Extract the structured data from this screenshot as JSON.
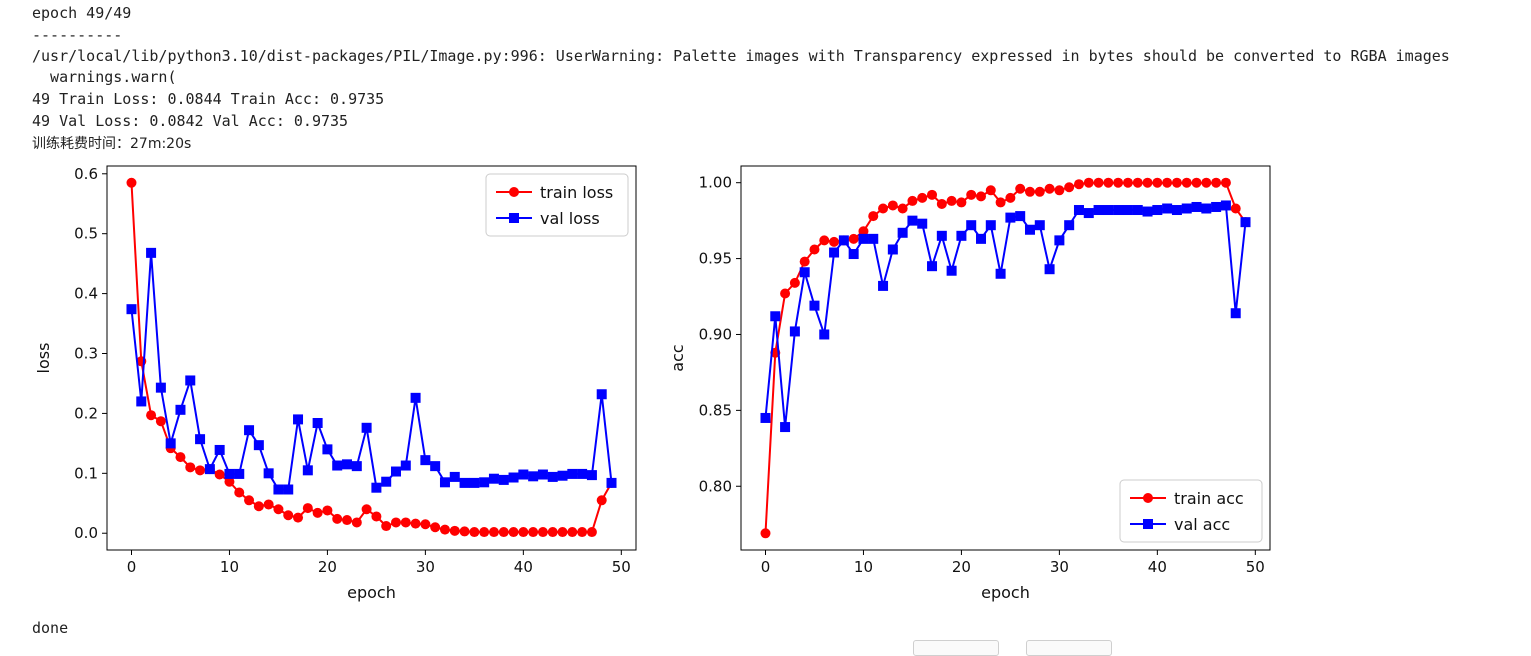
{
  "output": {
    "line1": "epoch 49/49",
    "line2": "----------",
    "line3": "/usr/local/lib/python3.10/dist-packages/PIL/Image.py:996: UserWarning: Palette images with Transparency expressed in bytes should be converted to RGBA images",
    "line4": "  warnings.warn(",
    "line5": "49 Train Loss: 0.0844 Train Acc: 0.9735",
    "line6": "49 Val Loss: 0.0842 Val Acc: 0.9735",
    "line7": "训练耗费时间：27m:20s",
    "done": "done"
  },
  "colors": {
    "train": "#ff0000",
    "val": "#0000ff"
  },
  "chart_data": [
    {
      "type": "line",
      "xlabel": "epoch",
      "ylabel": "loss",
      "xlim": [
        -2.5,
        51.5
      ],
      "ylim": [
        -0.028,
        0.613
      ],
      "xticks": [
        0,
        10,
        20,
        30,
        40,
        50
      ],
      "yticks": [
        0.0,
        0.1,
        0.2,
        0.3,
        0.4,
        0.5,
        0.6
      ],
      "ytick_labels": [
        "0.0",
        "0.1",
        "0.2",
        "0.3",
        "0.4",
        "0.5",
        "0.6"
      ],
      "legend_position": "upper-right",
      "x": [
        0,
        1,
        2,
        3,
        4,
        5,
        6,
        7,
        8,
        9,
        10,
        11,
        12,
        13,
        14,
        15,
        16,
        17,
        18,
        19,
        20,
        21,
        22,
        23,
        24,
        25,
        26,
        27,
        28,
        29,
        30,
        31,
        32,
        33,
        34,
        35,
        36,
        37,
        38,
        39,
        40,
        41,
        42,
        43,
        44,
        45,
        46,
        47,
        48,
        49
      ],
      "series": [
        {
          "name": "train loss",
          "marker": "circle",
          "color": "#ff0000",
          "values": [
            0.585,
            0.287,
            0.197,
            0.187,
            0.142,
            0.127,
            0.11,
            0.105,
            0.107,
            0.098,
            0.086,
            0.068,
            0.055,
            0.045,
            0.048,
            0.04,
            0.03,
            0.026,
            0.042,
            0.034,
            0.038,
            0.024,
            0.022,
            0.018,
            0.04,
            0.028,
            0.012,
            0.018,
            0.018,
            0.016,
            0.015,
            0.01,
            0.006,
            0.004,
            0.003,
            0.002,
            0.002,
            0.002,
            0.002,
            0.002,
            0.002,
            0.002,
            0.002,
            0.002,
            0.002,
            0.002,
            0.002,
            0.002,
            0.055,
            0.084
          ]
        },
        {
          "name": "val loss",
          "marker": "square",
          "color": "#0000ff",
          "values": [
            0.374,
            0.22,
            0.468,
            0.243,
            0.15,
            0.206,
            0.255,
            0.157,
            0.107,
            0.139,
            0.099,
            0.099,
            0.172,
            0.147,
            0.1,
            0.073,
            0.073,
            0.19,
            0.105,
            0.184,
            0.14,
            0.113,
            0.115,
            0.112,
            0.176,
            0.076,
            0.086,
            0.103,
            0.113,
            0.226,
            0.122,
            0.112,
            0.085,
            0.094,
            0.084,
            0.084,
            0.085,
            0.091,
            0.089,
            0.093,
            0.098,
            0.095,
            0.098,
            0.094,
            0.096,
            0.099,
            0.099,
            0.097,
            0.232,
            0.084
          ]
        }
      ]
    },
    {
      "type": "line",
      "xlabel": "epoch",
      "ylabel": "acc",
      "xlim": [
        -2.5,
        51.5
      ],
      "ylim": [
        0.758,
        1.011
      ],
      "xticks": [
        0,
        10,
        20,
        30,
        40,
        50
      ],
      "yticks": [
        0.8,
        0.85,
        0.9,
        0.95,
        1.0
      ],
      "ytick_labels": [
        "0.80",
        "0.85",
        "0.90",
        "0.95",
        "1.00"
      ],
      "legend_position": "lower-right",
      "x": [
        0,
        1,
        2,
        3,
        4,
        5,
        6,
        7,
        8,
        9,
        10,
        11,
        12,
        13,
        14,
        15,
        16,
        17,
        18,
        19,
        20,
        21,
        22,
        23,
        24,
        25,
        26,
        27,
        28,
        29,
        30,
        31,
        32,
        33,
        34,
        35,
        36,
        37,
        38,
        39,
        40,
        41,
        42,
        43,
        44,
        45,
        46,
        47,
        48,
        49
      ],
      "series": [
        {
          "name": "train acc",
          "marker": "circle",
          "color": "#ff0000",
          "values": [
            0.769,
            0.888,
            0.927,
            0.934,
            0.948,
            0.956,
            0.962,
            0.961,
            0.962,
            0.963,
            0.968,
            0.978,
            0.983,
            0.985,
            0.983,
            0.988,
            0.99,
            0.992,
            0.986,
            0.988,
            0.987,
            0.992,
            0.991,
            0.995,
            0.987,
            0.99,
            0.996,
            0.994,
            0.994,
            0.996,
            0.995,
            0.997,
            0.999,
            1.0,
            1.0,
            1.0,
            1.0,
            1.0,
            1.0,
            1.0,
            1.0,
            1.0,
            1.0,
            1.0,
            1.0,
            1.0,
            1.0,
            1.0,
            0.983,
            0.974
          ]
        },
        {
          "name": "val acc",
          "marker": "square",
          "color": "#0000ff",
          "values": [
            0.845,
            0.912,
            0.839,
            0.902,
            0.941,
            0.919,
            0.9,
            0.954,
            0.962,
            0.953,
            0.963,
            0.963,
            0.932,
            0.956,
            0.967,
            0.975,
            0.973,
            0.945,
            0.965,
            0.942,
            0.965,
            0.972,
            0.963,
            0.972,
            0.94,
            0.977,
            0.978,
            0.969,
            0.972,
            0.943,
            0.962,
            0.972,
            0.982,
            0.98,
            0.982,
            0.982,
            0.982,
            0.982,
            0.982,
            0.981,
            0.982,
            0.983,
            0.982,
            0.983,
            0.984,
            0.983,
            0.984,
            0.985,
            0.914,
            0.974
          ]
        }
      ]
    }
  ]
}
